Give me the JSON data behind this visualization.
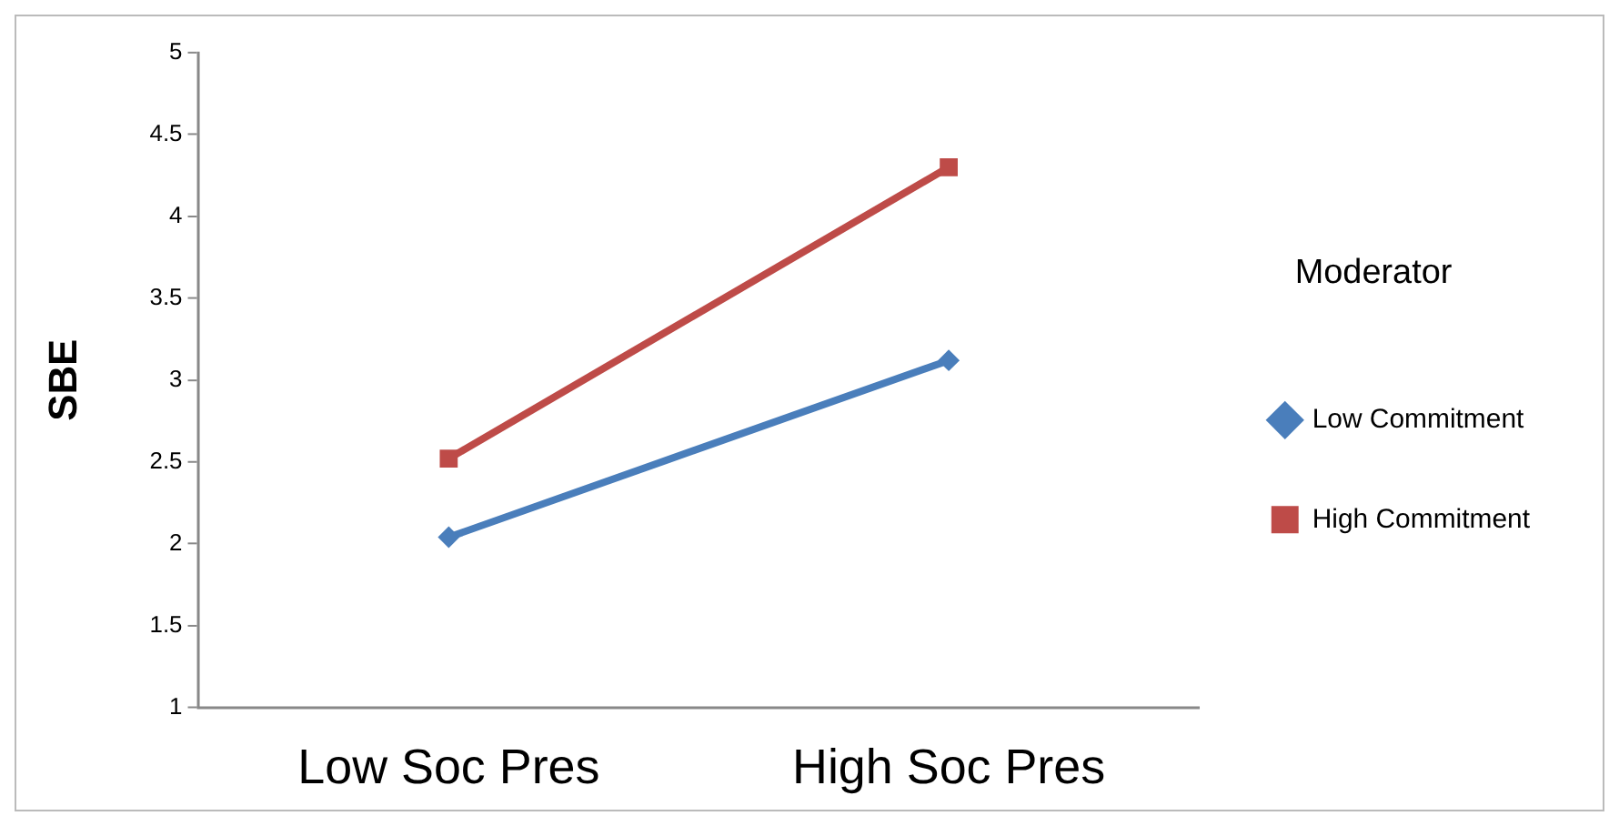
{
  "chart_data": {
    "type": "line",
    "ylabel": "SBE",
    "legend_title": "Moderator",
    "categories": [
      "Low Soc Pres",
      "High Soc Pres"
    ],
    "series": [
      {
        "name": "Low Commitment",
        "color": "#4a7ebb",
        "values": [
          2.04,
          3.12
        ],
        "marker": "diamond"
      },
      {
        "name": "High Commitment",
        "color": "#be4b48",
        "values": [
          2.52,
          4.3
        ],
        "marker": "square"
      }
    ],
    "ylim": [
      1,
      5
    ],
    "yticks": [
      1,
      1.5,
      2,
      2.5,
      3,
      3.5,
      4,
      4.5,
      5
    ],
    "grid": false,
    "legend": "right",
    "line_style": "solid"
  }
}
